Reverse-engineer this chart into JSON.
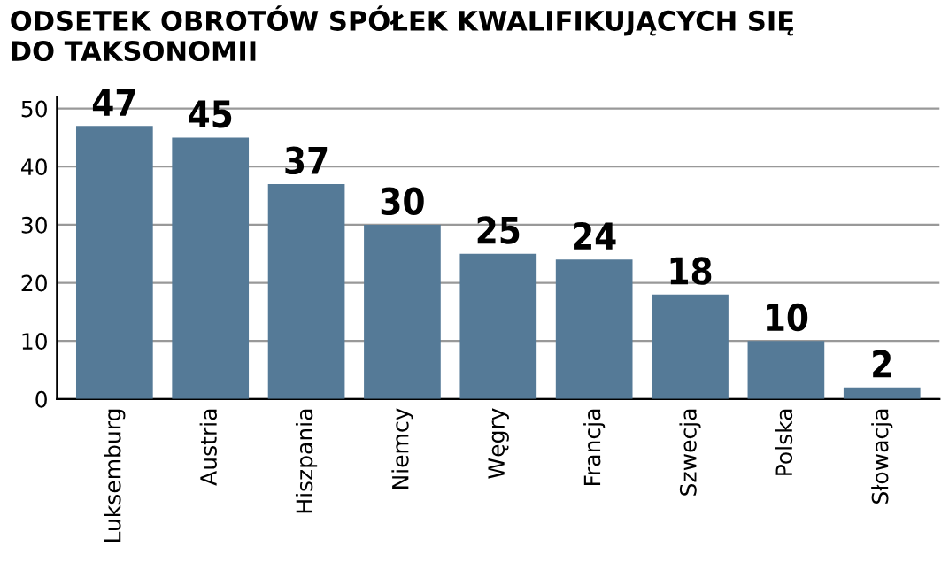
{
  "chart_data": {
    "type": "bar",
    "title": "ODSETEK OBROTÓW SPÓŁEK KWALIFIKUJĄCYCH SIĘ\nDO TAKSONOMII",
    "categories": [
      "Luksemburg",
      "Austria",
      "Hiszpania",
      "Niemcy",
      "Węgry",
      "Francja",
      "Szwecja",
      "Polska",
      "Słowacja"
    ],
    "values": [
      47,
      45,
      37,
      30,
      25,
      24,
      18,
      10,
      2
    ],
    "color": "#557a97",
    "ylim": [
      0,
      52
    ],
    "yticks": [
      0,
      10,
      20,
      30,
      40,
      50
    ],
    "grid": "y",
    "data_labels": true
  }
}
